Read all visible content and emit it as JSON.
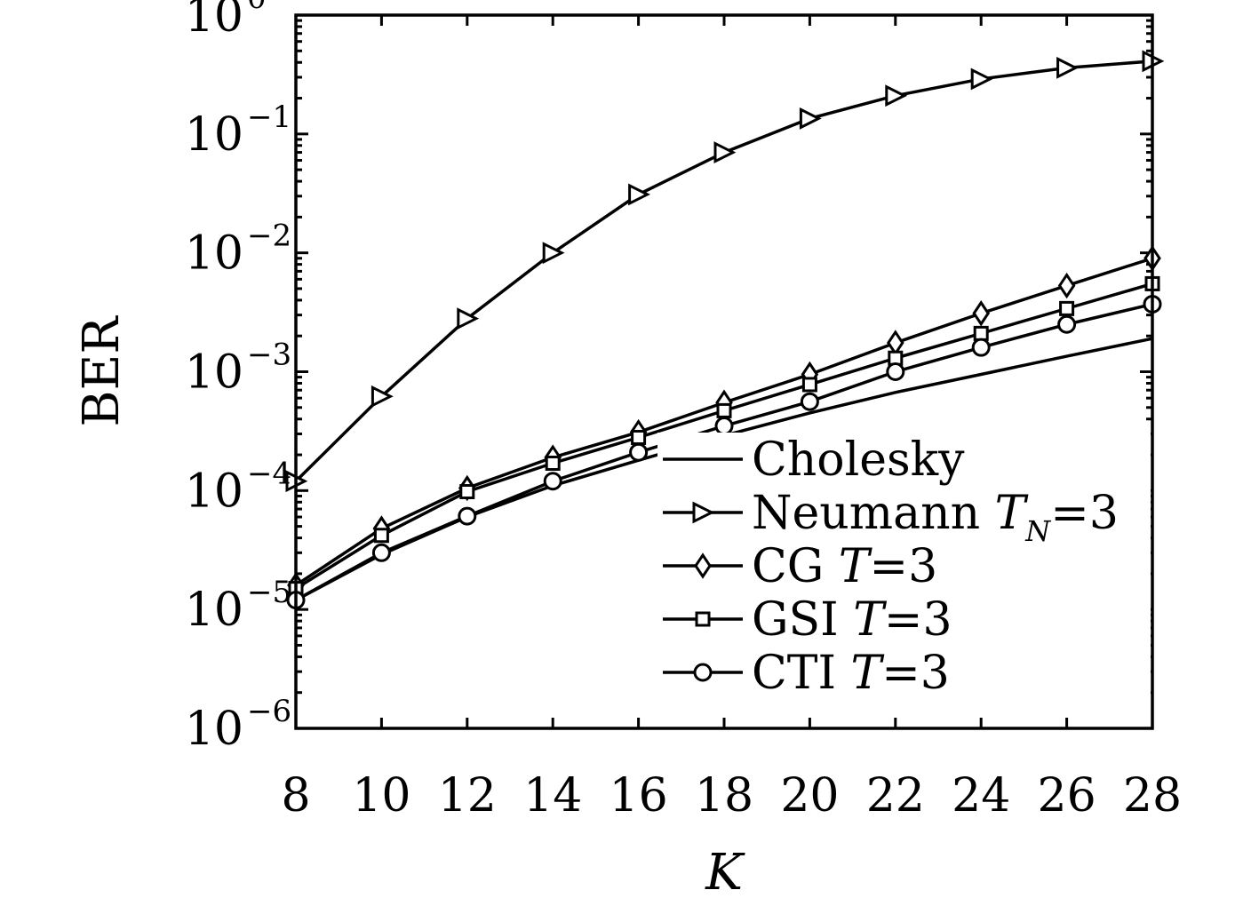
{
  "chart_data": {
    "type": "line",
    "xlabel": "K",
    "ylabel": "BER",
    "xlim": [
      8,
      28
    ],
    "ylim": [
      1e-06,
      1
    ],
    "yscale": "log",
    "grid": false,
    "legend_position": "bottom-right",
    "x": [
      8,
      10,
      12,
      14,
      16,
      18,
      20,
      22,
      24,
      26,
      28
    ],
    "x_tick_labels": [
      "8",
      "10",
      "12",
      "14",
      "16",
      "18",
      "20",
      "22",
      "24",
      "26",
      "28"
    ],
    "y_tick_labels": [
      {
        "base": "10",
        "exp": "0"
      },
      {
        "base": "10",
        "exp": "−1"
      },
      {
        "base": "10",
        "exp": "−2"
      },
      {
        "base": "10",
        "exp": "−3"
      },
      {
        "base": "10",
        "exp": "−4"
      },
      {
        "base": "10",
        "exp": "−5"
      },
      {
        "base": "10",
        "exp": "−6"
      }
    ],
    "series": [
      {
        "name": "Cholesky",
        "marker": "none",
        "values": [
          1.2e-05,
          2.9e-05,
          6e-05,
          0.00011,
          0.00018,
          0.00029,
          0.00045,
          0.00067,
          0.00095,
          0.00135,
          0.0019
        ]
      },
      {
        "name": "Neumann T_N=3",
        "marker": "triangle-right",
        "values": [
          0.00012,
          0.00062,
          0.0028,
          0.01,
          0.031,
          0.07,
          0.135,
          0.21,
          0.29,
          0.36,
          0.41
        ]
      },
      {
        "name": "CG T=3",
        "marker": "diamond",
        "values": [
          1.6e-05,
          4.8e-05,
          0.000105,
          0.00019,
          0.00031,
          0.00055,
          0.00095,
          0.00175,
          0.0031,
          0.0053,
          0.009
        ]
      },
      {
        "name": "GSI T=3",
        "marker": "square",
        "values": [
          1.5e-05,
          4.2e-05,
          9.8e-05,
          0.00017,
          0.00028,
          0.00047,
          0.00078,
          0.0013,
          0.0021,
          0.0034,
          0.0055
        ]
      },
      {
        "name": "CTI T=3",
        "marker": "circle",
        "values": [
          1.2e-05,
          3e-05,
          6.1e-05,
          0.00012,
          0.00021,
          0.00035,
          0.00056,
          0.001,
          0.0016,
          0.0025,
          0.0037
        ]
      }
    ],
    "legend": [
      {
        "parts": [
          {
            "text": "Cholesky",
            "italic": false
          }
        ]
      },
      {
        "parts": [
          {
            "text": "Neumann ",
            "italic": false
          },
          {
            "text": "T",
            "italic": true
          },
          {
            "text": "N",
            "italic": true,
            "sub": true
          },
          {
            "text": "=3",
            "italic": false
          }
        ]
      },
      {
        "parts": [
          {
            "text": "CG  ",
            "italic": false
          },
          {
            "text": "T",
            "italic": true
          },
          {
            "text": "=3",
            "italic": false
          }
        ]
      },
      {
        "parts": [
          {
            "text": "GSI  ",
            "italic": false
          },
          {
            "text": "T",
            "italic": true
          },
          {
            "text": "=3",
            "italic": false
          }
        ]
      },
      {
        "parts": [
          {
            "text": "CTI  ",
            "italic": false
          },
          {
            "text": "T",
            "italic": true
          },
          {
            "text": "=3",
            "italic": false
          }
        ]
      }
    ]
  }
}
